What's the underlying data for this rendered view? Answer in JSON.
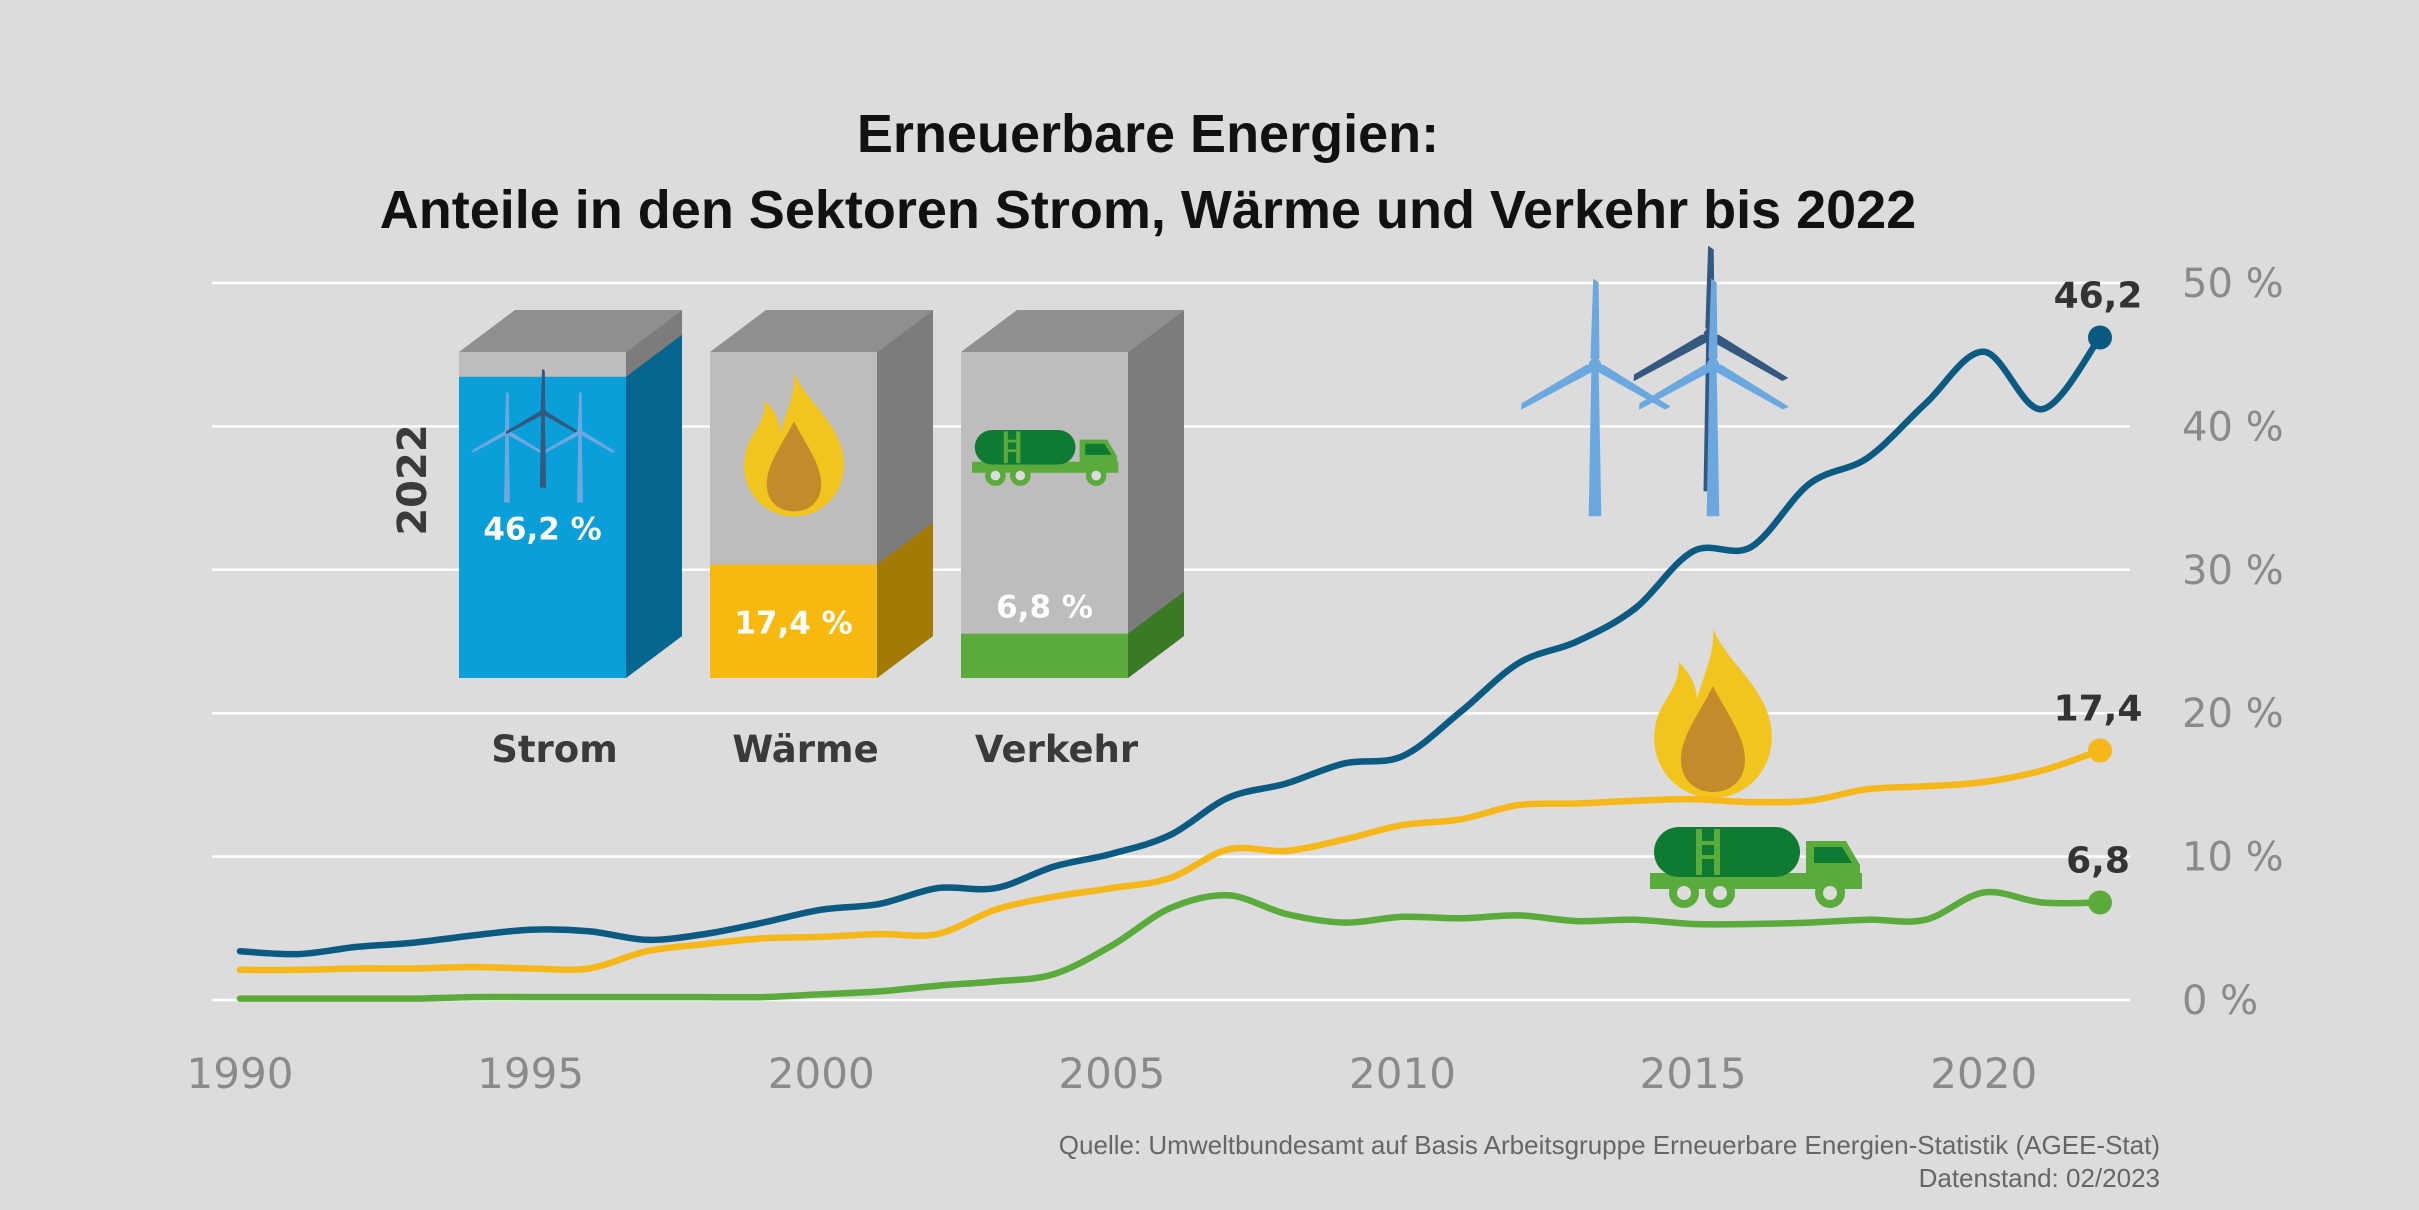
{
  "title_line1": "Erneuerbare Energien:",
  "title_line2": "Anteile in den Sektoren Strom, Wärme und Verkehr bis 2022",
  "source_line1": "Quelle: Umweltbundesamt auf Basis Arbeitsgruppe Erneuerbare Energien-Statistik (AGEE-Stat)",
  "source_line2": "Datenstand: 02/2023",
  "chart_data": {
    "type": "line",
    "title": "Erneuerbare Energien: Anteile in den Sektoren Strom, Wärme und Verkehr bis 2022",
    "xlim": [
      1990,
      2022
    ],
    "ylim": [
      0,
      50
    ],
    "x_ticks": [
      "1990",
      "1995",
      "2000",
      "2005",
      "2010",
      "2015",
      "2020"
    ],
    "y_ticks": [
      "0 %",
      "10 %",
      "20 %",
      "30 %",
      "40 %",
      "50 %"
    ],
    "grid": true,
    "x": [
      1990,
      1991,
      1992,
      1993,
      1994,
      1995,
      1996,
      1997,
      1998,
      1999,
      2000,
      2001,
      2002,
      2003,
      2004,
      2005,
      2006,
      2007,
      2008,
      2009,
      2010,
      2011,
      2012,
      2013,
      2014,
      2015,
      2016,
      2017,
      2018,
      2019,
      2020,
      2021,
      2022
    ],
    "series": [
      {
        "name": "Strom",
        "color": "#0b5a82",
        "end_label": "46,2",
        "values": [
          3.4,
          3.2,
          3.7,
          4.0,
          4.5,
          4.9,
          4.8,
          4.2,
          4.6,
          5.4,
          6.3,
          6.7,
          7.8,
          7.8,
          9.3,
          10.2,
          11.5,
          14.1,
          15.1,
          16.5,
          17.0,
          20.1,
          23.5,
          25.0,
          27.3,
          31.3,
          31.6,
          36.0,
          37.8,
          41.6,
          45.2,
          41.2,
          46.2
        ]
      },
      {
        "name": "Wärme",
        "color": "#f6b718",
        "end_label": "17,4",
        "values": [
          2.1,
          2.1,
          2.2,
          2.2,
          2.3,
          2.2,
          2.2,
          3.4,
          3.9,
          4.3,
          4.4,
          4.6,
          4.6,
          6.3,
          7.2,
          7.8,
          8.5,
          10.5,
          10.4,
          11.2,
          12.2,
          12.6,
          13.6,
          13.7,
          13.9,
          14.0,
          13.8,
          13.9,
          14.7,
          14.9,
          15.2,
          16.0,
          17.4
        ]
      },
      {
        "name": "Verkehr",
        "color": "#5aab3b",
        "end_label": "6,8",
        "values": [
          0.1,
          0.1,
          0.1,
          0.1,
          0.2,
          0.2,
          0.2,
          0.2,
          0.2,
          0.2,
          0.4,
          0.6,
          1.0,
          1.3,
          1.8,
          3.8,
          6.4,
          7.3,
          6.0,
          5.4,
          5.8,
          5.7,
          5.9,
          5.5,
          5.6,
          5.3,
          5.3,
          5.4,
          5.6,
          5.6,
          7.5,
          6.8,
          6.8
        ]
      }
    ],
    "inset_bars": {
      "year_label": "2022",
      "bars": [
        {
          "category": "Strom",
          "value": 46.2,
          "label": "46,2 %",
          "icon": "wind-turbines-icon",
          "color": "#0a9fd8"
        },
        {
          "category": "Wärme",
          "value": 17.4,
          "label": "17,4 %",
          "icon": "flame-icon",
          "color": "#f7b90f"
        },
        {
          "category": "Verkehr",
          "value": 6.8,
          "label": "6,8 %",
          "icon": "tank-truck-icon",
          "color": "#5aab3b"
        }
      ]
    },
    "colors": {
      "background": "#dcdcdc",
      "grid": "#ffffff",
      "box_front": "#bdbdbd",
      "box_side": "#7c7c7c",
      "box_top": "#8f8f8f"
    }
  }
}
